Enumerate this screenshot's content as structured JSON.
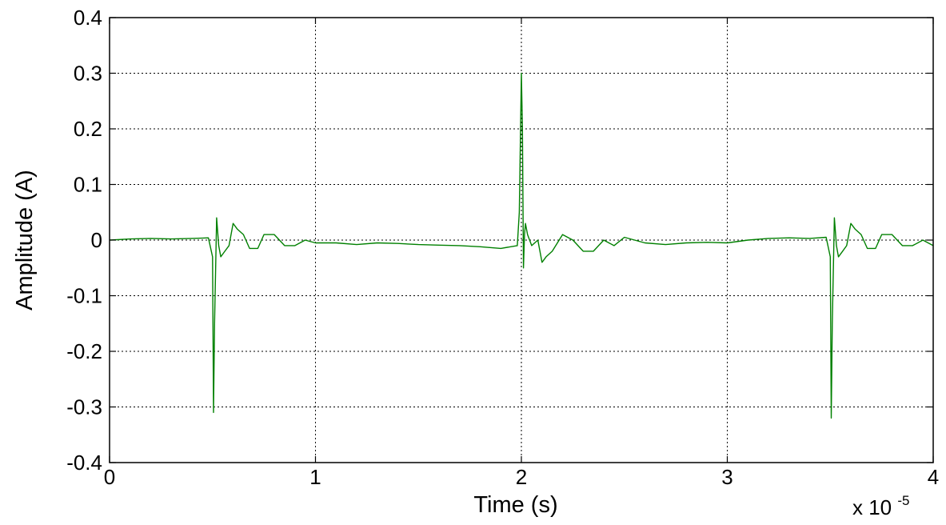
{
  "chart_data": {
    "type": "line",
    "title": "",
    "xlabel": "Time (s)",
    "ylabel": "Amplitude (A)",
    "x_exponent_label": "x 10",
    "x_exponent_power": "-5",
    "xlim": [
      0,
      4
    ],
    "ylim": [
      -0.4,
      0.4
    ],
    "xticks": [
      0,
      1,
      2,
      3,
      4
    ],
    "xtick_labels": [
      "0",
      "1",
      "2",
      "3",
      "4"
    ],
    "yticks": [
      0.4,
      0.3,
      0.2,
      0.1,
      0,
      -0.1,
      -0.2,
      -0.3,
      -0.4
    ],
    "ytick_labels": [
      "0.4",
      "0.3",
      "0.2",
      "0.1",
      "0",
      "-0.1",
      "-0.2",
      "-0.3",
      "-0.4"
    ],
    "grid": true,
    "series": [
      {
        "color": "#008000",
        "x": [
          0,
          0.1,
          0.2,
          0.3,
          0.4,
          0.48,
          0.5,
          0.505,
          0.51,
          0.52,
          0.53,
          0.54,
          0.56,
          0.58,
          0.6,
          0.62,
          0.65,
          0.68,
          0.72,
          0.75,
          0.8,
          0.85,
          0.9,
          0.95,
          1.0,
          1.1,
          1.2,
          1.3,
          1.4,
          1.5,
          1.6,
          1.7,
          1.8,
          1.9,
          1.98,
          1.99,
          2.0,
          2.005,
          2.01,
          2.015,
          2.02,
          2.03,
          2.05,
          2.08,
          2.1,
          2.12,
          2.15,
          2.2,
          2.25,
          2.3,
          2.35,
          2.4,
          2.45,
          2.5,
          2.6,
          2.7,
          2.8,
          2.9,
          3.0,
          3.1,
          3.2,
          3.3,
          3.4,
          3.48,
          3.5,
          3.505,
          3.51,
          3.52,
          3.53,
          3.54,
          3.56,
          3.58,
          3.6,
          3.62,
          3.65,
          3.68,
          3.72,
          3.75,
          3.8,
          3.85,
          3.9,
          3.95,
          4.0
        ],
        "y": [
          0.0,
          0.002,
          0.003,
          0.002,
          0.003,
          0.004,
          -0.03,
          -0.31,
          -0.15,
          0.04,
          -0.01,
          -0.03,
          -0.02,
          -0.01,
          0.03,
          0.02,
          0.01,
          -0.015,
          -0.015,
          0.01,
          0.01,
          -0.01,
          -0.01,
          0.0,
          -0.005,
          -0.005,
          -0.008,
          -0.005,
          -0.006,
          -0.008,
          -0.009,
          -0.01,
          -0.012,
          -0.015,
          -0.01,
          0.05,
          0.3,
          0.2,
          -0.05,
          0.01,
          0.03,
          0.01,
          -0.01,
          0.0,
          -0.04,
          -0.03,
          -0.02,
          0.01,
          0.0,
          -0.02,
          -0.02,
          0.0,
          -0.01,
          0.005,
          -0.005,
          -0.008,
          -0.005,
          -0.004,
          -0.005,
          0.0,
          0.003,
          0.004,
          0.003,
          0.005,
          -0.03,
          -0.32,
          -0.15,
          0.04,
          -0.01,
          -0.03,
          -0.02,
          -0.01,
          0.03,
          0.02,
          0.01,
          -0.015,
          -0.015,
          0.01,
          0.01,
          -0.01,
          -0.01,
          0.0,
          -0.01
        ]
      }
    ]
  }
}
